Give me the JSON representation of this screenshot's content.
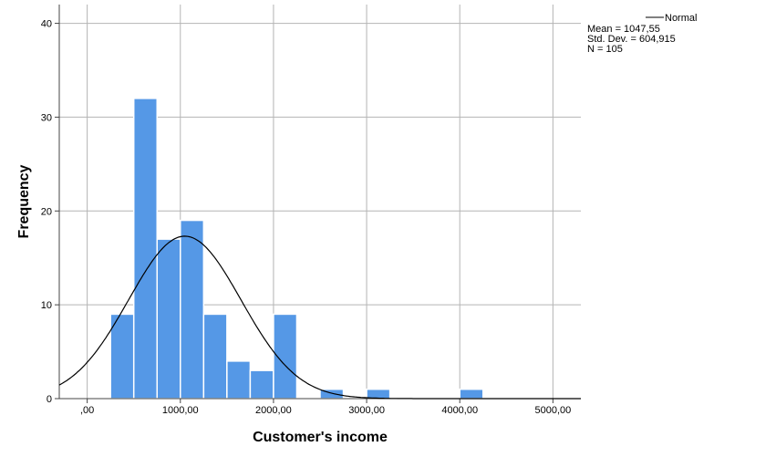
{
  "chart_data": {
    "type": "bar",
    "title": "",
    "xlabel": "Customer's income",
    "ylabel": "Frequency",
    "xlim": [
      -300,
      5300
    ],
    "ylim": [
      0,
      42
    ],
    "grid": true,
    "x_ticks": [
      {
        "value": 0,
        "label": ",00"
      },
      {
        "value": 1000,
        "label": "1000,00"
      },
      {
        "value": 2000,
        "label": "2000,00"
      },
      {
        "value": 3000,
        "label": "3000,00"
      },
      {
        "value": 4000,
        "label": "4000,00"
      },
      {
        "value": 5000,
        "label": "5000,00"
      }
    ],
    "y_ticks": [
      {
        "value": 0,
        "label": "0"
      },
      {
        "value": 10,
        "label": "10"
      },
      {
        "value": 20,
        "label": "20"
      },
      {
        "value": 30,
        "label": "30"
      },
      {
        "value": 40,
        "label": "40"
      }
    ],
    "bin_width": 250,
    "bins": [
      {
        "start": 250,
        "end": 500,
        "count": 9
      },
      {
        "start": 500,
        "end": 750,
        "count": 32
      },
      {
        "start": 750,
        "end": 1000,
        "count": 17
      },
      {
        "start": 1000,
        "end": 1250,
        "count": 19
      },
      {
        "start": 1250,
        "end": 1500,
        "count": 9
      },
      {
        "start": 1500,
        "end": 1750,
        "count": 4
      },
      {
        "start": 1750,
        "end": 2000,
        "count": 3
      },
      {
        "start": 2000,
        "end": 2250,
        "count": 9
      },
      {
        "start": 2500,
        "end": 2750,
        "count": 1
      },
      {
        "start": 3000,
        "end": 3250,
        "count": 1
      },
      {
        "start": 4000,
        "end": 4250,
        "count": 1
      }
    ],
    "bar_color": "#5598e6",
    "normal_curve": {
      "mean": 1047.55,
      "std": 604.915,
      "n": 105,
      "color": "#000000"
    },
    "legend": {
      "position": "top-right",
      "series_label": "Normal",
      "lines": [
        "Mean = 1047,55",
        "Std. Dev. = 604,915",
        "N = 105"
      ]
    }
  }
}
